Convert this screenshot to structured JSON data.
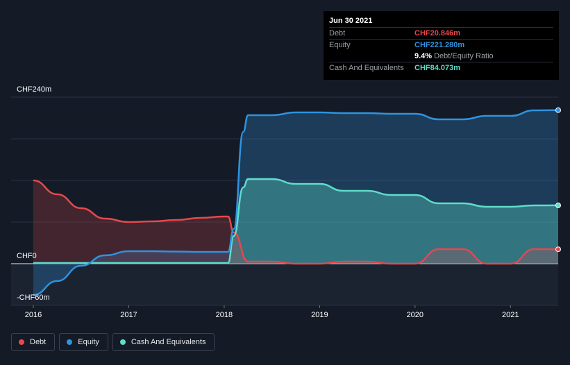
{
  "tooltip": {
    "date": "Jun 30 2021",
    "debt_label": "Debt",
    "debt_value": "CHF20.846m",
    "equity_label": "Equity",
    "equity_value": "CHF221.280m",
    "ratio_value": "9.4%",
    "ratio_label": "Debt/Equity Ratio",
    "cash_label": "Cash And Equivalents",
    "cash_value": "CHF84.073m"
  },
  "legend": {
    "debt": "Debt",
    "equity": "Equity",
    "cash": "Cash And Equivalents"
  },
  "colors": {
    "debt": "#e5484d",
    "equity": "#2f93e0",
    "cash": "#5fdccb",
    "background": "#151b26"
  },
  "chart_data": {
    "type": "area",
    "y_tick_labels": [
      "CHF240m",
      "CHF0",
      "-CHF60m"
    ],
    "y_tick_values": [
      240,
      0,
      -60
    ],
    "ylim": [
      -60,
      240
    ],
    "xlim": [
      2016,
      2021.5
    ],
    "x_tick_labels": [
      "2016",
      "2017",
      "2018",
      "2019",
      "2020",
      "2021"
    ],
    "x_tick_values": [
      2016,
      2017,
      2018,
      2019,
      2020,
      2021
    ],
    "grid": true,
    "legend_position": "bottom-left",
    "series": [
      {
        "name": "Debt",
        "x": [
          2016,
          2016.25,
          2016.5,
          2016.75,
          2017,
          2017.25,
          2017.5,
          2017.75,
          2018,
          2018.04,
          2018.1,
          2018.25,
          2018.5,
          2018.75,
          2019,
          2019.25,
          2019.5,
          2019.75,
          2020,
          2020.25,
          2020.5,
          2020.75,
          2021,
          2021.25,
          2021.5
        ],
        "values": [
          120,
          100,
          80,
          65,
          60,
          61,
          63,
          66,
          68,
          68,
          45,
          3,
          3,
          0,
          0,
          3,
          3,
          0,
          0,
          21,
          21,
          0,
          0,
          21,
          20.8
        ]
      },
      {
        "name": "Equity",
        "x": [
          2016,
          2016.25,
          2016.5,
          2016.75,
          2017,
          2017.25,
          2017.5,
          2017.75,
          2018,
          2018.04,
          2018.1,
          2018.2,
          2018.25,
          2018.5,
          2018.75,
          2019,
          2019.25,
          2019.5,
          2019.75,
          2020,
          2020.25,
          2020.5,
          2020.75,
          2021,
          2021.25,
          2021.5
        ],
        "values": [
          -45,
          -25,
          -3,
          12,
          18,
          18,
          17.5,
          17,
          17,
          17,
          50,
          190,
          214,
          214,
          218,
          218,
          217,
          217,
          216,
          216,
          208,
          208,
          213,
          213,
          221,
          221.3
        ]
      },
      {
        "name": "Cash And Equivalents",
        "x": [
          2016,
          2016.25,
          2016.5,
          2016.75,
          2017,
          2017.25,
          2017.5,
          2017.75,
          2018,
          2018.04,
          2018.1,
          2018.2,
          2018.25,
          2018.5,
          2018.75,
          2019,
          2019.25,
          2019.5,
          2019.75,
          2020,
          2020.25,
          2020.5,
          2020.75,
          2021,
          2021.25,
          2021.5
        ],
        "values": [
          1,
          1,
          1,
          1,
          1,
          1,
          1,
          1,
          1,
          1,
          40,
          110,
          122,
          122,
          115,
          115,
          105,
          105,
          99,
          99,
          87,
          87,
          82,
          82,
          84,
          84.1
        ]
      }
    ]
  }
}
